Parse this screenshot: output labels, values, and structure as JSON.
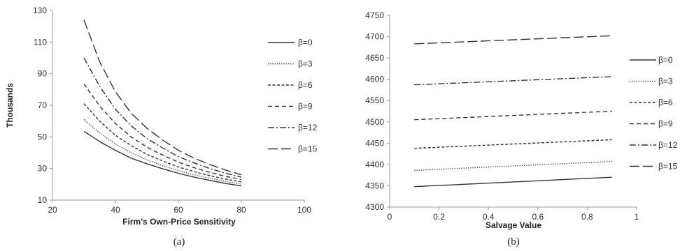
{
  "chart_data": [
    {
      "type": "line",
      "panel_label": "(a)",
      "xlabel": "Firm's Own-Price Sensitivity",
      "ylabel": "Thousands",
      "xlim": [
        20,
        100
      ],
      "ylim": [
        10,
        130
      ],
      "xticks": [
        20,
        40,
        60,
        80,
        100
      ],
      "yticks": [
        10,
        30,
        50,
        70,
        90,
        110,
        130
      ],
      "grid": false,
      "legend_position": "right",
      "x": [
        30,
        35,
        40,
        45,
        50,
        55,
        60,
        65,
        70,
        75,
        80
      ],
      "series": [
        {
          "name": "β=0",
          "dash": "solid",
          "values": [
            53.5,
            47.0,
            41.5,
            36.5,
            33.0,
            29.8,
            27.0,
            24.5,
            22.5,
            20.5,
            19.0
          ]
        },
        {
          "name": "β=3",
          "dash": "dotted",
          "values": [
            61.0,
            52.5,
            45.5,
            40.0,
            35.5,
            31.8,
            28.7,
            26.0,
            23.8,
            21.8,
            20.2
          ]
        },
        {
          "name": "β=6",
          "dash": "short",
          "values": [
            71.0,
            60.0,
            51.0,
            44.5,
            39.0,
            34.8,
            31.0,
            28.0,
            25.5,
            23.3,
            21.5
          ]
        },
        {
          "name": "β=9",
          "dash": "medium",
          "values": [
            83.5,
            69.5,
            58.5,
            50.0,
            43.5,
            38.5,
            34.0,
            30.5,
            27.5,
            25.0,
            23.0
          ]
        },
        {
          "name": "β=12",
          "dash": "dashdot",
          "values": [
            100.0,
            82.0,
            67.5,
            57.0,
            49.0,
            43.0,
            37.5,
            33.5,
            30.0,
            27.0,
            24.5
          ]
        },
        {
          "name": "β=15",
          "dash": "long",
          "values": [
            124.0,
            97.5,
            78.5,
            65.0,
            55.5,
            48.0,
            41.5,
            36.5,
            32.5,
            29.0,
            26.0
          ]
        }
      ]
    },
    {
      "type": "line",
      "panel_label": "(b)",
      "xlabel": "Salvage Value",
      "ylabel": "",
      "xlim": [
        0,
        1
      ],
      "ylim": [
        4300,
        4750
      ],
      "xticks": [
        0,
        0.2,
        0.4,
        0.6,
        0.8,
        1
      ],
      "xtick_labels": [
        "0",
        "0.2",
        "0.4",
        "0.6",
        "0.8",
        "1"
      ],
      "yticks": [
        4300,
        4350,
        4400,
        4450,
        4500,
        4550,
        4600,
        4650,
        4700,
        4750
      ],
      "grid": false,
      "legend_position": "right",
      "x": [
        0.1,
        0.9
      ],
      "series": [
        {
          "name": "β=0",
          "dash": "solid",
          "values": [
            4348,
            4370
          ]
        },
        {
          "name": "β=3",
          "dash": "dotted",
          "values": [
            4386,
            4407
          ]
        },
        {
          "name": "β=6",
          "dash": "short",
          "values": [
            4438,
            4458
          ]
        },
        {
          "name": "β=9",
          "dash": "medium",
          "values": [
            4505,
            4525
          ]
        },
        {
          "name": "β=12",
          "dash": "dashdot",
          "values": [
            4587,
            4606
          ]
        },
        {
          "name": "β=15",
          "dash": "long",
          "values": [
            4683,
            4702
          ]
        }
      ]
    }
  ],
  "style": {
    "line_color": "#333333",
    "axis_color": "#999999"
  }
}
